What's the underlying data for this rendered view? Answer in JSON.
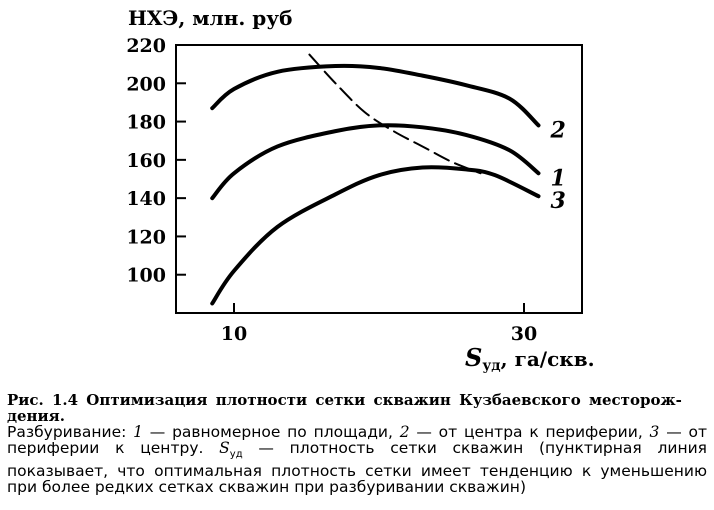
{
  "chart_data": {
    "type": "line",
    "ylabel": "НХЭ, млн. руб",
    "xlabel_symbol": "S",
    "xlabel_subscript": "уд",
    "xlabel_rest": ", га/скв.",
    "xlim": [
      6,
      34
    ],
    "ylim": [
      80,
      220
    ],
    "y_ticks": [
      "220",
      "200",
      "180",
      "160",
      "140",
      "120",
      "100"
    ],
    "x_ticks": [
      "10",
      "30"
    ],
    "grid": false,
    "series": [
      {
        "name": "2",
        "style": "solid",
        "x": [
          8.5,
          10,
          13,
          17,
          20,
          23,
          26,
          29,
          31
        ],
        "y": [
          187,
          197,
          206,
          209,
          208,
          204,
          199,
          192,
          178
        ]
      },
      {
        "name": "1",
        "style": "solid",
        "x": [
          8.5,
          10,
          13,
          17,
          20,
          23,
          26,
          29,
          31
        ],
        "y": [
          140,
          153,
          167,
          175,
          178,
          177,
          173,
          165,
          153
        ]
      },
      {
        "name": "3",
        "style": "solid",
        "x": [
          8.5,
          10,
          13,
          17,
          20,
          23,
          26,
          28,
          31
        ],
        "y": [
          85,
          102,
          125,
          142,
          152,
          156,
          155,
          152,
          141
        ]
      },
      {
        "name": "",
        "style": "dashed",
        "x": [
          15.2,
          17,
          19,
          21,
          23,
          25,
          27
        ],
        "y": [
          215,
          200,
          185,
          175,
          167,
          159,
          153
        ]
      }
    ]
  },
  "caption": {
    "title": "Рис. 1.4  Оптимизация  плотности  сетки скважин Кузбаевского месторож-дения.",
    "body_before_1": "Разбуривание: ",
    "n1": "1",
    "text1": " — равномерное по площади, ",
    "n2": "2",
    "text2": " — от центра к периферии, ",
    "n3": "3",
    "text3": " — от периферии к центру. ",
    "s_symbol": "S",
    "s_sub": "уд",
    "text4": " — плотность сетки скважин (пунктирная линия показывает, что оптимальная плотность сетки имеет тенденцию к уменьшению при более редких сетках скважин при разбуривании скважин)"
  }
}
